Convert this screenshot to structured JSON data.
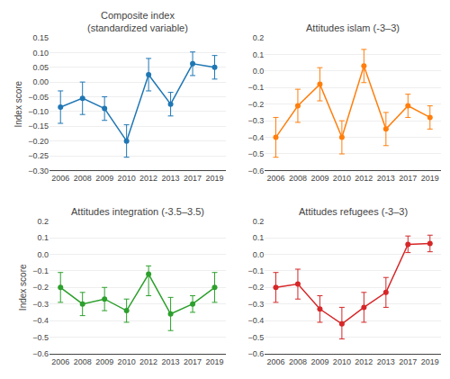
{
  "chart_data": [
    {
      "type": "line",
      "title": "Composite index\n(standardized variable)",
      "ylabel": "Index score",
      "categories": [
        "2006",
        "2008",
        "2009",
        "2010",
        "2012",
        "2013",
        "2017",
        "2019"
      ],
      "values": [
        -0.085,
        -0.055,
        -0.09,
        -0.2,
        0.025,
        -0.075,
        0.062,
        0.05
      ],
      "err_low": [
        0.055,
        0.055,
        0.04,
        0.055,
        0.055,
        0.04,
        0.04,
        0.04
      ],
      "err_high": [
        0.055,
        0.055,
        0.04,
        0.055,
        0.055,
        0.04,
        0.04,
        0.04
      ],
      "ylim": [
        -0.3,
        0.15
      ],
      "yticks": [
        {
          "value": -0.3,
          "label": "−0.30"
        },
        {
          "value": -0.25,
          "label": "−0.25"
        },
        {
          "value": -0.2,
          "label": "−0.20"
        },
        {
          "value": -0.15,
          "label": "−0.15"
        },
        {
          "value": -0.1,
          "label": "−0.10"
        },
        {
          "value": -0.05,
          "label": "−0.05"
        },
        {
          "value": 0,
          "label": "0.00"
        },
        {
          "value": 0.05,
          "label": "0.05"
        },
        {
          "value": 0.1,
          "label": "0.10"
        },
        {
          "value": 0.15,
          "label": "0.15"
        }
      ],
      "grid": "y",
      "marker": "circle"
    },
    {
      "type": "line",
      "title": "Attitudes islam (-3–3)",
      "categories": [
        "2006",
        "2008",
        "2009",
        "2010",
        "2012",
        "2013",
        "2017",
        "2019"
      ],
      "values": [
        -0.4,
        -0.21,
        -0.08,
        -0.4,
        0.03,
        -0.35,
        -0.21,
        -0.28
      ],
      "err_low": [
        0.12,
        0.1,
        0.1,
        0.1,
        0.1,
        0.1,
        0.07,
        0.07
      ],
      "err_high": [
        0.12,
        0.1,
        0.1,
        0.1,
        0.1,
        0.1,
        0.07,
        0.07
      ],
      "ylim": [
        -0.6,
        0.2
      ],
      "yticks": [
        {
          "value": -0.6,
          "label": "−0.6"
        },
        {
          "value": -0.5,
          "label": "−0.5"
        },
        {
          "value": -0.4,
          "label": "−0.4"
        },
        {
          "value": -0.3,
          "label": "−0.3"
        },
        {
          "value": -0.2,
          "label": "−0.2"
        },
        {
          "value": -0.1,
          "label": "−0.1"
        },
        {
          "value": 0,
          "label": "0.0"
        },
        0.1,
        0.2
      ],
      "grid": "y",
      "marker": "circle"
    },
    {
      "type": "line",
      "title": "Attitudes integration (-3.5–3.5)",
      "ylabel": "Index score",
      "categories": [
        "2006",
        "2008",
        "2009",
        "2010",
        "2012",
        "2013",
        "2017",
        "2019"
      ],
      "values": [
        -0.2,
        -0.3,
        -0.27,
        -0.34,
        -0.12,
        -0.36,
        -0.3,
        -0.2
      ],
      "err_low": [
        0.09,
        0.07,
        0.07,
        0.07,
        0.13,
        0.1,
        0.05,
        0.09
      ],
      "err_high": [
        0.09,
        0.07,
        0.07,
        0.07,
        0.05,
        0.1,
        0.05,
        0.09
      ],
      "ylim": [
        -0.6,
        0.2
      ],
      "yticks": [
        {
          "value": -0.6,
          "label": "−0.6"
        },
        {
          "value": -0.5,
          "label": "−0.5"
        },
        {
          "value": -0.4,
          "label": "−0.4"
        },
        {
          "value": -0.3,
          "label": "−0.3"
        },
        {
          "value": -0.2,
          "label": "−0.2"
        },
        {
          "value": -0.1,
          "label": "−0.1"
        },
        {
          "value": 0,
          "label": "0.0"
        },
        0.1,
        0.2
      ],
      "grid": "y",
      "marker": "circle"
    },
    {
      "type": "line",
      "title": "Attitudes refugees (-3–3)",
      "categories": [
        "2006",
        "2008",
        "2009",
        "2010",
        "2012",
        "2013",
        "2017",
        "2019"
      ],
      "values": [
        -0.2,
        -0.18,
        -0.33,
        -0.42,
        -0.32,
        -0.23,
        0.06,
        0.065
      ],
      "err_low": [
        0.09,
        0.09,
        0.08,
        0.09,
        0.09,
        0.09,
        0.05,
        0.05
      ],
      "err_high": [
        0.09,
        0.09,
        0.08,
        0.1,
        0.09,
        0.09,
        0.05,
        0.05
      ],
      "ylim": [
        -0.6,
        0.2
      ],
      "yticks": [
        {
          "value": -0.6,
          "label": "−0.6"
        },
        {
          "value": -0.5,
          "label": "−0.5"
        },
        {
          "value": -0.4,
          "label": "−0.4"
        },
        {
          "value": -0.3,
          "label": "−0.3"
        },
        {
          "value": -0.2,
          "label": "−0.2"
        },
        {
          "value": -0.1,
          "label": "−0.1"
        },
        {
          "value": 0,
          "label": "0.0"
        },
        0.1,
        0.2
      ],
      "grid": "y",
      "marker": "circle"
    }
  ]
}
